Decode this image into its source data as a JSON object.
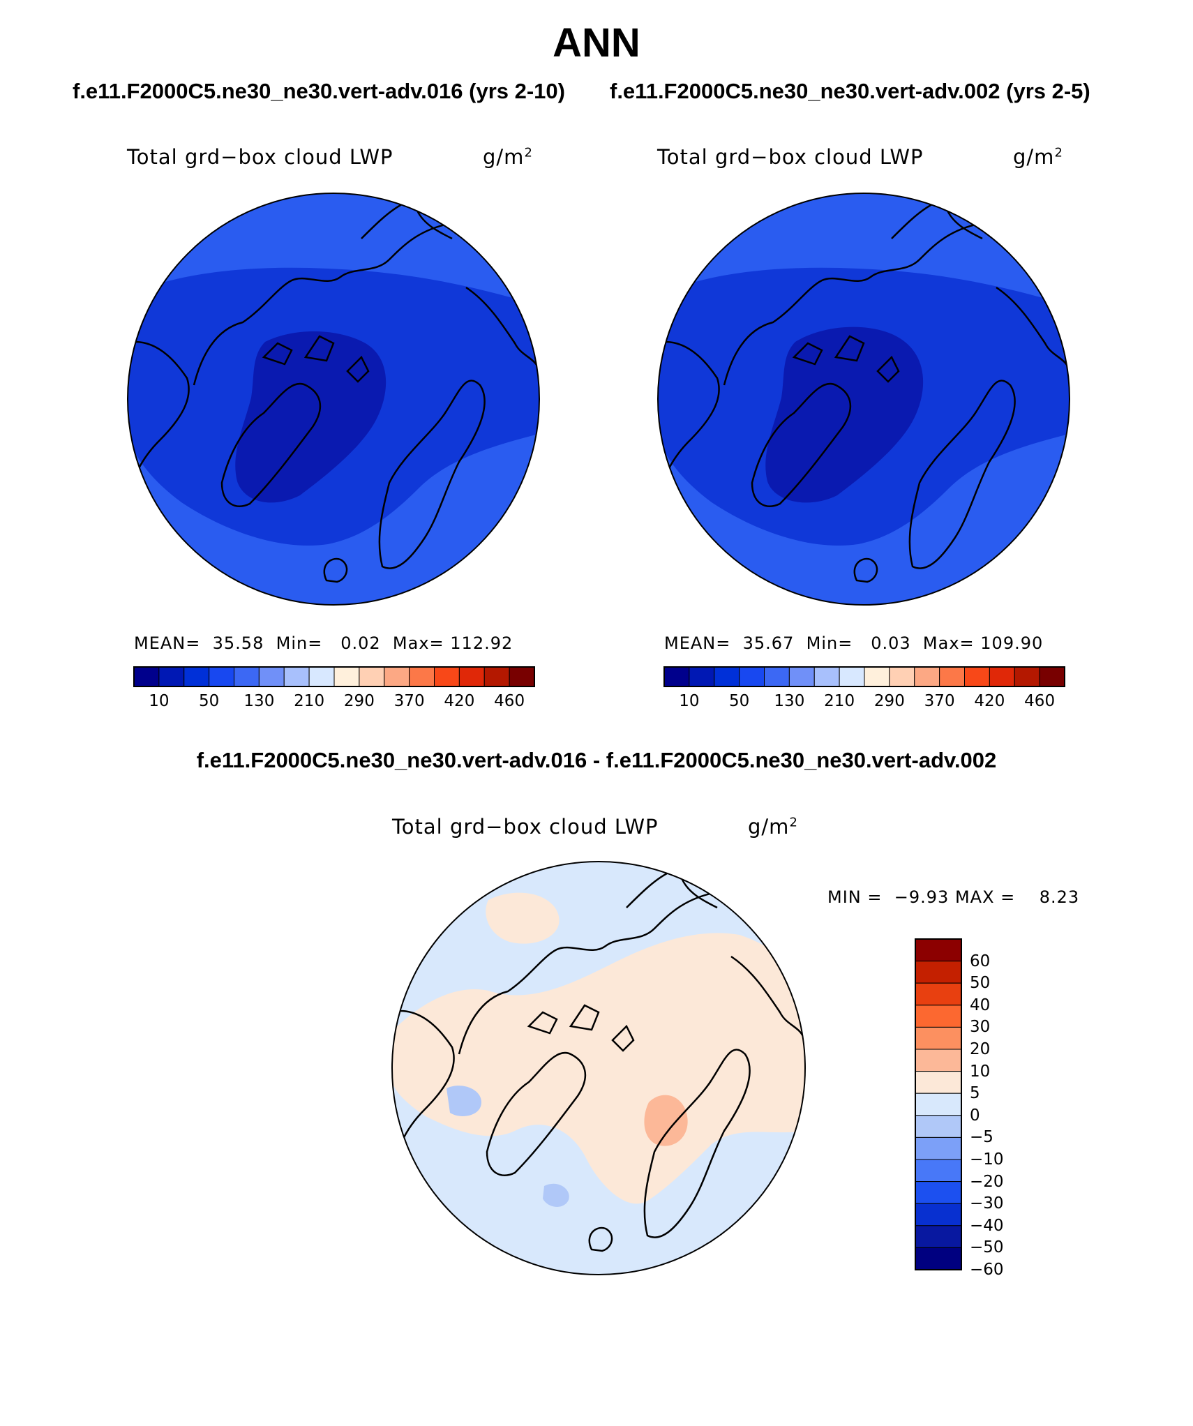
{
  "title": "ANN",
  "colors": {
    "abs_scale": [
      "#00008c",
      "#0018b4",
      "#0030d8",
      "#1848f0",
      "#3c68f4",
      "#7090f8",
      "#a8c0fc",
      "#d8e8ff",
      "#fff0dc",
      "#ffd0b4",
      "#fca884",
      "#fc7848",
      "#f84818",
      "#e02808",
      "#b41800",
      "#780000"
    ],
    "diff_scale": [
      "#000080",
      "#0818a0",
      "#0830d0",
      "#1c50f0",
      "#4878f8",
      "#7ca0f8",
      "#b0c8f8",
      "#d8e8fc",
      "#fce8d8",
      "#fcb898",
      "#fc9060",
      "#fc6830",
      "#e84010",
      "#c42000",
      "#8c0000"
    ],
    "map_fill_light": "#2a5cf0",
    "map_fill_mid": "#1038d8",
    "map_fill_dark": "#0a1ab0",
    "diff_fill_blue": "#d8e8fc",
    "diff_fill_orange": "#fce8d8"
  },
  "panels": [
    {
      "case_title": "f.e11.F2000C5.ne30_ne30.vert-adv.016 (yrs 2-10)",
      "plot_title": "Total grd−box cloud LWP",
      "units": "g/m",
      "units_sup": "2",
      "mean_label": "MEAN=",
      "mean_value": "35.58",
      "min_label": "Min=",
      "min_value": "0.02",
      "max_label": "Max=",
      "max_value": "112.92",
      "colorbar_ticks": [
        "10",
        "50",
        "130",
        "210",
        "290",
        "370",
        "420",
        "460"
      ]
    },
    {
      "case_title": "f.e11.F2000C5.ne30_ne30.vert-adv.002 (yrs 2-5)",
      "plot_title": "Total grd−box cloud LWP",
      "units": "g/m",
      "units_sup": "2",
      "mean_label": "MEAN=",
      "mean_value": "35.67",
      "min_label": "Min=",
      "min_value": "0.03",
      "max_label": "Max=",
      "max_value": "109.90",
      "colorbar_ticks": [
        "10",
        "50",
        "130",
        "210",
        "290",
        "370",
        "420",
        "460"
      ]
    }
  ],
  "diff": {
    "title": "f.e11.F2000C5.ne30_ne30.vert-adv.016 - f.e11.F2000C5.ne30_ne30.vert-adv.002",
    "plot_title": "Total grd−box cloud LWP",
    "units": "g/m",
    "units_sup": "2",
    "min_label": "MIN =",
    "min_value": "−9.93",
    "max_label": "MAX =",
    "max_value": "8.23",
    "colorbar_ticks": [
      "60",
      "50",
      "40",
      "30",
      "20",
      "10",
      "5",
      "0",
      "−5",
      "−10",
      "−20",
      "−30",
      "−40",
      "−50",
      "−60"
    ]
  }
}
